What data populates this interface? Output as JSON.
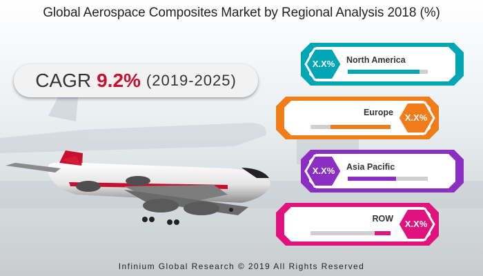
{
  "chart_data": {
    "type": "table",
    "title": "Global Aerospace Composites Market by Regional Analysis 2018 (%)",
    "categories": [
      "North America",
      "Europe",
      "Asia Pacific",
      "ROW"
    ],
    "values": [
      "X.X%",
      "X.X%",
      "X.X%",
      "X.X%"
    ],
    "bar_levels": [
      0.9,
      0.75,
      0.6,
      0.2
    ],
    "colors": [
      "#00a6b4",
      "#f07c1a",
      "#8a2fc2",
      "#e0137e"
    ]
  },
  "cagr": {
    "label": "CAGR",
    "value": "9.2%",
    "period": "(2019-2025)"
  },
  "footer": "Infinium Global Research © 2019 All Rights Reserved"
}
